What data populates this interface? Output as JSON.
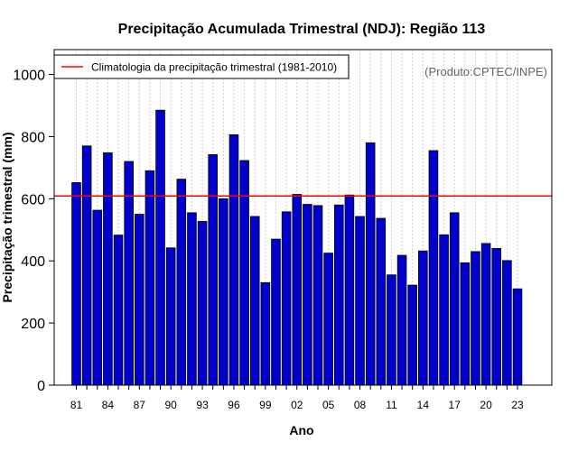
{
  "chart_data": {
    "type": "bar",
    "title": "Precipitação Acumulada Trimestral (NDJ): Região 113",
    "xlabel": "Ano",
    "ylabel": "Precipitação trimestral (mm)",
    "credit": "(Produto:CPTEC/INPE)",
    "ylim": [
      0,
      1080
    ],
    "yticks": [
      0,
      200,
      400,
      600,
      800,
      1000
    ],
    "grid": true,
    "categories": [
      "81",
      "82",
      "83",
      "84",
      "85",
      "86",
      "87",
      "88",
      "89",
      "90",
      "91",
      "92",
      "93",
      "94",
      "95",
      "96",
      "97",
      "98",
      "99",
      "00",
      "01",
      "02",
      "03",
      "04",
      "05",
      "06",
      "07",
      "08",
      "09",
      "10",
      "11",
      "12",
      "13",
      "14",
      "15",
      "16",
      "17",
      "18",
      "19",
      "20",
      "21",
      "22",
      "23"
    ],
    "xtick_labels": [
      "81",
      "84",
      "87",
      "90",
      "93",
      "96",
      "99",
      "02",
      "05",
      "08",
      "11",
      "14",
      "17",
      "20",
      "23"
    ],
    "values": [
      652,
      770,
      563,
      748,
      483,
      720,
      550,
      690,
      885,
      442,
      663,
      555,
      527,
      742,
      600,
      806,
      723,
      543,
      330,
      470,
      558,
      614,
      582,
      578,
      425,
      580,
      612,
      543,
      780,
      537,
      355,
      418,
      322,
      432,
      755,
      484,
      555,
      394,
      430,
      456,
      440,
      401,
      310
    ],
    "bar_color": "#0000cc",
    "climatology": {
      "label": "Climatologia da precipitação trimestral (1981-2010)",
      "value": 609,
      "color": "#ff0000"
    },
    "legend_position": "top-left"
  }
}
